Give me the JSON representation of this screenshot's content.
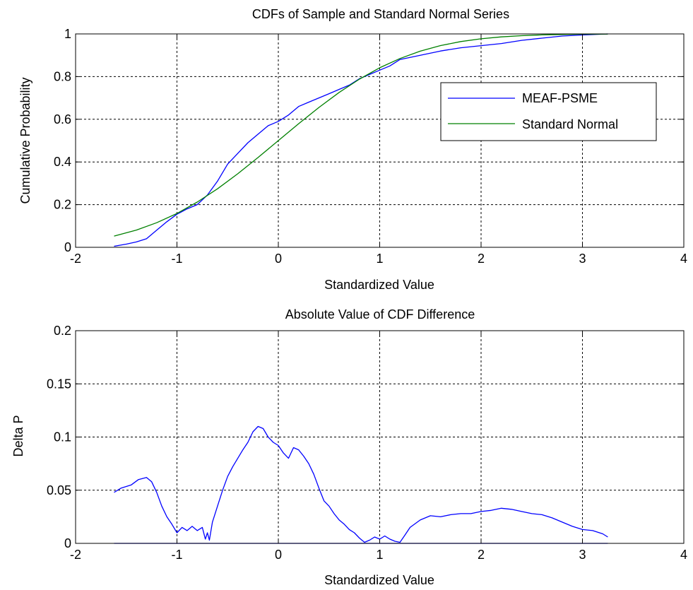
{
  "chart_data": [
    {
      "type": "line",
      "title": "CDFs of Sample and Standard Normal Series",
      "xlabel": "Standardized Value",
      "ylabel": "Cumulative Probability",
      "xlim": [
        -2,
        4
      ],
      "ylim": [
        0,
        1
      ],
      "xticks": [
        -2,
        -1,
        0,
        1,
        2,
        3,
        4
      ],
      "yticks": [
        0,
        0.2,
        0.4,
        0.6,
        0.8,
        1
      ],
      "xtick_labels": [
        "-2",
        "-1",
        "0",
        "1",
        "2",
        "3",
        "4"
      ],
      "ytick_labels": [
        "0",
        "0.2",
        "0.4",
        "0.6",
        "0.8",
        "1"
      ],
      "grid": true,
      "legend_position": "right",
      "series": [
        {
          "name": "MEAF-PSME",
          "color": "#0000ff",
          "x": [
            -1.62,
            -1.5,
            -1.4,
            -1.3,
            -1.2,
            -1.1,
            -1.0,
            -0.9,
            -0.8,
            -0.7,
            -0.6,
            -0.5,
            -0.4,
            -0.3,
            -0.2,
            -0.1,
            0.0,
            0.1,
            0.2,
            0.3,
            0.4,
            0.5,
            0.6,
            0.7,
            0.8,
            0.9,
            1.0,
            1.1,
            1.2,
            1.4,
            1.6,
            1.8,
            2.0,
            2.2,
            2.4,
            2.6,
            2.8,
            3.0,
            3.25
          ],
          "y": [
            0.005,
            0.015,
            0.025,
            0.04,
            0.08,
            0.12,
            0.155,
            0.18,
            0.2,
            0.245,
            0.31,
            0.39,
            0.44,
            0.49,
            0.53,
            0.57,
            0.59,
            0.62,
            0.66,
            0.68,
            0.7,
            0.72,
            0.74,
            0.76,
            0.79,
            0.81,
            0.83,
            0.85,
            0.88,
            0.9,
            0.92,
            0.935,
            0.945,
            0.955,
            0.97,
            0.98,
            0.99,
            0.995,
            1.0
          ]
        },
        {
          "name": "Standard Normal",
          "color": "#008000",
          "x": [
            -1.62,
            -1.4,
            -1.2,
            -1.0,
            -0.8,
            -0.6,
            -0.4,
            -0.2,
            0.0,
            0.2,
            0.4,
            0.6,
            0.8,
            1.0,
            1.2,
            1.4,
            1.6,
            1.8,
            2.0,
            2.2,
            2.4,
            2.6,
            2.8,
            3.0,
            3.25
          ],
          "y": [
            0.0526,
            0.0808,
            0.1151,
            0.1587,
            0.2119,
            0.2743,
            0.3446,
            0.4207,
            0.5,
            0.5793,
            0.6554,
            0.7257,
            0.7881,
            0.8413,
            0.8849,
            0.9192,
            0.9452,
            0.9641,
            0.9772,
            0.9861,
            0.9918,
            0.9953,
            0.9974,
            0.9987,
            0.9994
          ]
        }
      ]
    },
    {
      "type": "line",
      "title": "Absolute Value of CDF Difference",
      "xlabel": "Standardized Value",
      "ylabel": "Delta P",
      "xlim": [
        -2,
        4
      ],
      "ylim": [
        0,
        0.2
      ],
      "xticks": [
        -2,
        -1,
        0,
        1,
        2,
        3,
        4
      ],
      "yticks": [
        0,
        0.05,
        0.1,
        0.15,
        0.2
      ],
      "xtick_labels": [
        "-2",
        "-1",
        "0",
        "1",
        "2",
        "3",
        "4"
      ],
      "ytick_labels": [
        "0",
        "0.05",
        "0.1",
        "0.15",
        "0.2"
      ],
      "grid": true,
      "series": [
        {
          "color": "#0000ff",
          "x": [
            -1.62,
            -1.55,
            -1.45,
            -1.38,
            -1.3,
            -1.25,
            -1.2,
            -1.15,
            -1.1,
            -1.05,
            -1.0,
            -0.95,
            -0.9,
            -0.85,
            -0.8,
            -0.75,
            -0.72,
            -0.7,
            -0.68,
            -0.65,
            -0.6,
            -0.55,
            -0.5,
            -0.45,
            -0.4,
            -0.35,
            -0.3,
            -0.25,
            -0.2,
            -0.15,
            -0.1,
            -0.05,
            0.0,
            0.05,
            0.1,
            0.15,
            0.2,
            0.25,
            0.3,
            0.35,
            0.4,
            0.45,
            0.5,
            0.55,
            0.6,
            0.65,
            0.7,
            0.75,
            0.8,
            0.85,
            0.9,
            0.95,
            1.0,
            1.05,
            1.1,
            1.15,
            1.2,
            1.25,
            1.3,
            1.4,
            1.5,
            1.6,
            1.7,
            1.8,
            1.9,
            2.0,
            2.1,
            2.2,
            2.3,
            2.4,
            2.5,
            2.6,
            2.7,
            2.8,
            2.9,
            3.0,
            3.1,
            3.2,
            3.25
          ],
          "y": [
            0.048,
            0.052,
            0.055,
            0.06,
            0.062,
            0.058,
            0.048,
            0.035,
            0.025,
            0.018,
            0.01,
            0.015,
            0.012,
            0.016,
            0.012,
            0.015,
            0.004,
            0.01,
            0.003,
            0.02,
            0.035,
            0.05,
            0.063,
            0.072,
            0.08,
            0.088,
            0.095,
            0.105,
            0.11,
            0.108,
            0.1,
            0.095,
            0.092,
            0.085,
            0.08,
            0.09,
            0.088,
            0.082,
            0.075,
            0.065,
            0.052,
            0.04,
            0.035,
            0.028,
            0.022,
            0.018,
            0.013,
            0.01,
            0.005,
            0.001,
            0.003,
            0.006,
            0.004,
            0.007,
            0.004,
            0.002,
            0.001,
            0.008,
            0.015,
            0.022,
            0.026,
            0.025,
            0.027,
            0.028,
            0.028,
            0.03,
            0.031,
            0.033,
            0.032,
            0.03,
            0.028,
            0.027,
            0.024,
            0.02,
            0.016,
            0.013,
            0.012,
            0.009,
            0.006
          ]
        },
        {
          "color": "#0000ff",
          "x": [
            -1.62,
            3.25
          ],
          "y": [
            0,
            0
          ]
        }
      ]
    }
  ]
}
